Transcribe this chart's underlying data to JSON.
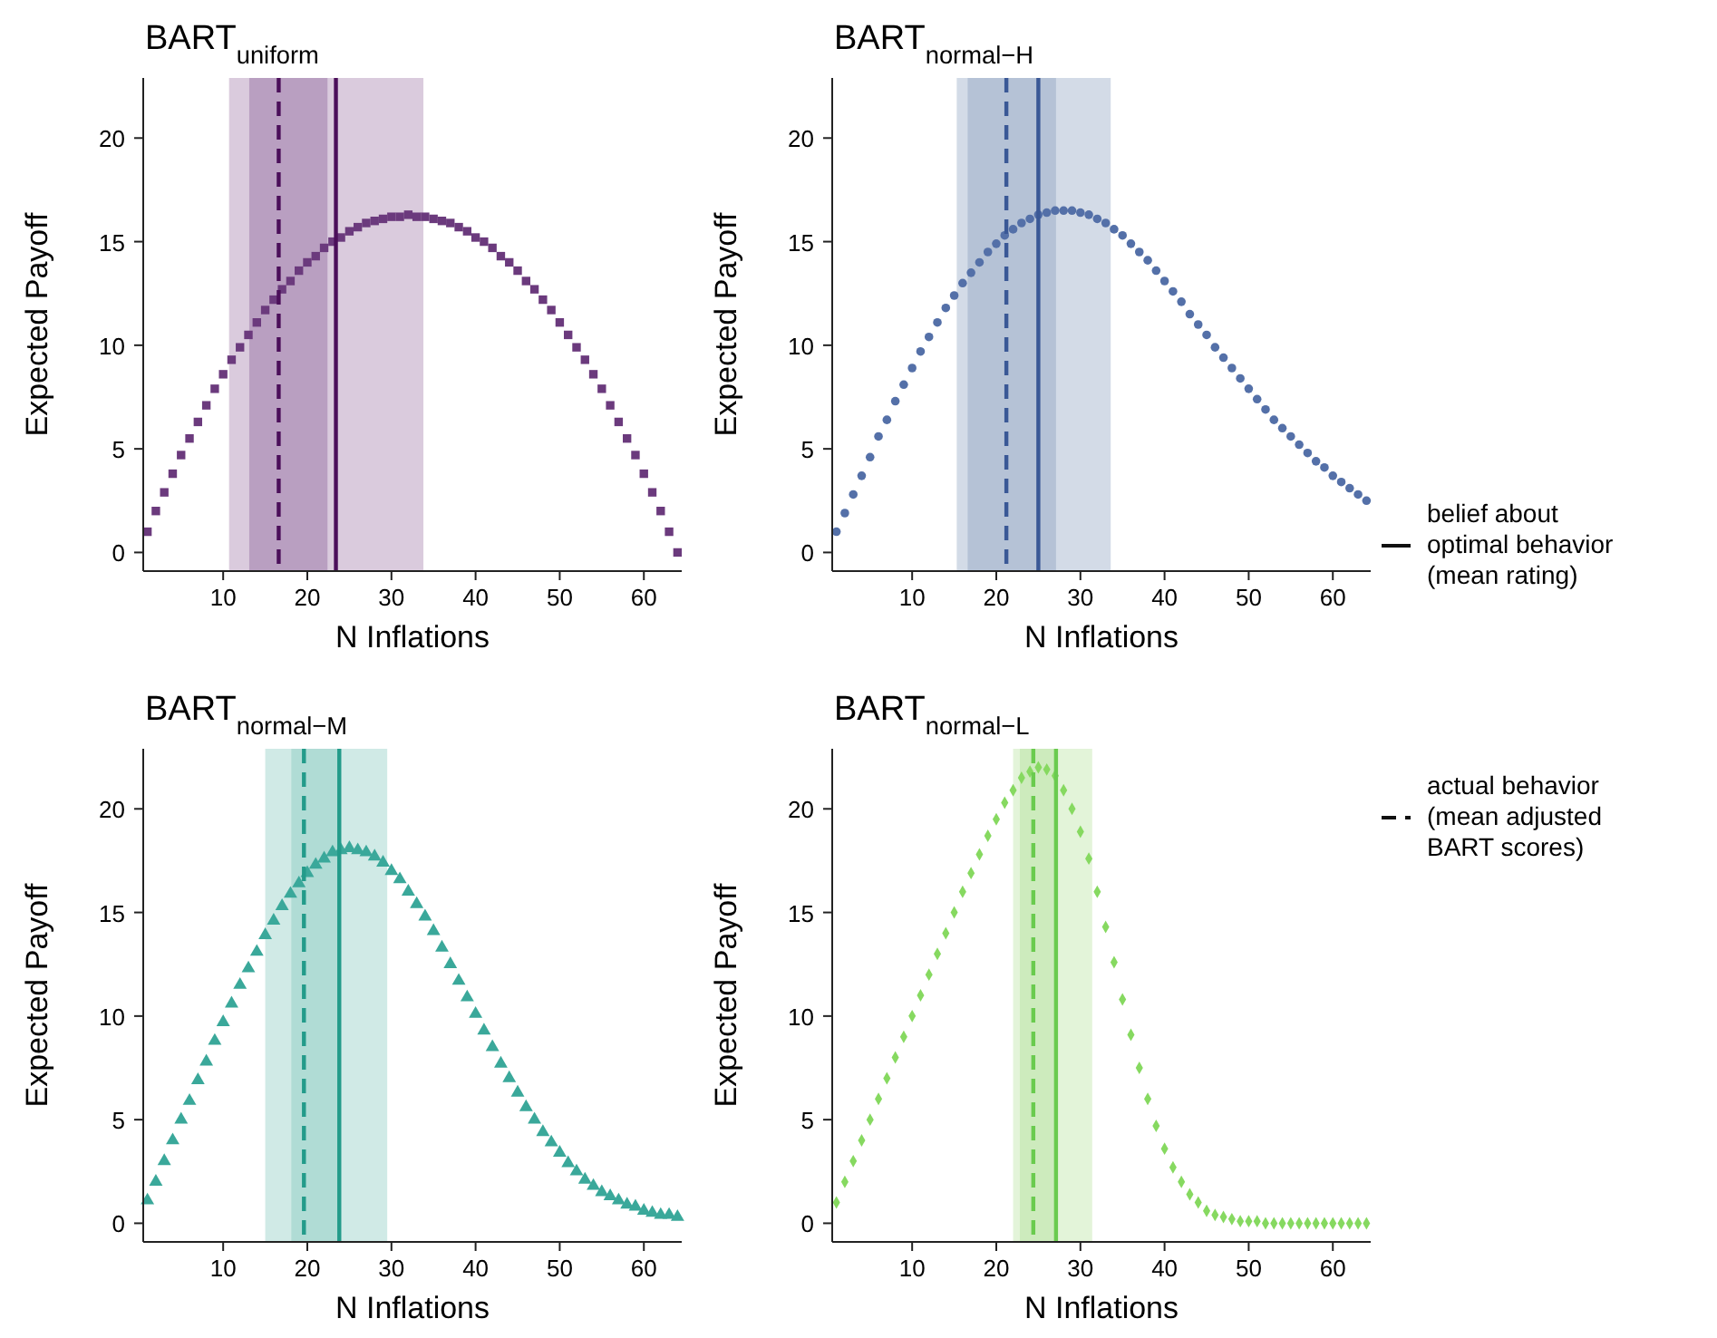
{
  "chart_data": [
    {
      "type": "scatter",
      "title": "BART$_{uniform}$",
      "xlabel": "N Inflations",
      "ylabel": "Expected Payoff",
      "marker": "square",
      "grid": false,
      "xlim": [
        0.5,
        64.5
      ],
      "ylim": [
        -0.9,
        22.9
      ],
      "xticks": [
        10,
        20,
        30,
        40,
        50,
        60
      ],
      "yticks": [
        0,
        5,
        10,
        15,
        20
      ],
      "x": [
        1,
        2,
        3,
        4,
        5,
        6,
        7,
        8,
        9,
        10,
        11,
        12,
        13,
        14,
        15,
        16,
        17,
        18,
        19,
        20,
        21,
        22,
        23,
        24,
        25,
        26,
        27,
        28,
        29,
        30,
        31,
        32,
        33,
        34,
        35,
        36,
        37,
        38,
        39,
        40,
        41,
        42,
        43,
        44,
        45,
        46,
        47,
        48,
        49,
        50,
        51,
        52,
        53,
        54,
        55,
        56,
        57,
        58,
        59,
        60,
        61,
        62,
        63,
        64
      ],
      "series": [
        {
          "color": "#6b3a7d",
          "values": [
            1.0,
            2.0,
            2.9,
            3.8,
            4.7,
            5.5,
            6.3,
            7.1,
            7.9,
            8.6,
            9.3,
            9.9,
            10.5,
            11.1,
            11.7,
            12.2,
            12.7,
            13.1,
            13.6,
            14.0,
            14.3,
            14.7,
            15.0,
            15.2,
            15.5,
            15.7,
            15.9,
            16.0,
            16.1,
            16.2,
            16.2,
            16.3,
            16.2,
            16.2,
            16.1,
            16.0,
            15.9,
            15.7,
            15.5,
            15.2,
            15.0,
            14.7,
            14.3,
            14.0,
            13.6,
            13.1,
            12.7,
            12.2,
            11.7,
            11.1,
            10.5,
            9.9,
            9.3,
            8.6,
            7.9,
            7.1,
            6.3,
            5.5,
            4.7,
            3.8,
            2.9,
            2.0,
            1.0,
            0
          ]
        }
      ],
      "bands": [
        {
          "axis": "x",
          "from": 10.7,
          "to": 33.8,
          "color": "#dacbdd"
        },
        {
          "axis": "x",
          "from": 13.1,
          "to": 22.4,
          "color": "#b99fc1"
        }
      ],
      "ref_lines": [
        {
          "axis": "x",
          "value": 16.6,
          "color": "#4b0f5a",
          "line_style": "dashed"
        },
        {
          "axis": "x",
          "value": 23.4,
          "color": "#4b0f5a",
          "line_style": "solid"
        }
      ]
    },
    {
      "type": "scatter",
      "title": "BART$_{normal−H}$",
      "xlabel": "N Inflations",
      "ylabel": "Expected Payoff",
      "marker": "circle",
      "grid": false,
      "xlim": [
        0.5,
        64.5
      ],
      "ylim": [
        -0.9,
        22.9
      ],
      "xticks": [
        10,
        20,
        30,
        40,
        50,
        60
      ],
      "yticks": [
        0,
        5,
        10,
        15,
        20
      ],
      "x": [
        1,
        2,
        3,
        4,
        5,
        6,
        7,
        8,
        9,
        10,
        11,
        12,
        13,
        14,
        15,
        16,
        17,
        18,
        19,
        20,
        21,
        22,
        23,
        24,
        25,
        26,
        27,
        28,
        29,
        30,
        31,
        32,
        33,
        34,
        35,
        36,
        37,
        38,
        39,
        40,
        41,
        42,
        43,
        44,
        45,
        46,
        47,
        48,
        49,
        50,
        51,
        52,
        53,
        54,
        55,
        56,
        57,
        58,
        59,
        60,
        61,
        62,
        63,
        64
      ],
      "series": [
        {
          "color": "#5470a8",
          "values": [
            1.0,
            1.9,
            2.8,
            3.7,
            4.6,
            5.6,
            6.4,
            7.3,
            8.1,
            8.9,
            9.7,
            10.4,
            11.1,
            11.8,
            12.4,
            13.0,
            13.5,
            14.0,
            14.5,
            14.9,
            15.3,
            15.6,
            15.9,
            16.1,
            16.3,
            16.4,
            16.5,
            16.5,
            16.5,
            16.4,
            16.3,
            16.1,
            15.9,
            15.6,
            15.3,
            14.9,
            14.5,
            14.1,
            13.6,
            13.1,
            12.6,
            12.1,
            11.5,
            11.0,
            10.5,
            9.9,
            9.4,
            8.9,
            8.4,
            7.9,
            7.4,
            6.9,
            6.4,
            6.0,
            5.6,
            5.2,
            4.8,
            4.4,
            4.1,
            3.7,
            3.4,
            3.1,
            2.8,
            2.5
          ]
        }
      ],
      "bands": [
        {
          "axis": "x",
          "from": 15.3,
          "to": 33.6,
          "color": "#d3dbe7"
        },
        {
          "axis": "x",
          "from": 16.6,
          "to": 27.1,
          "color": "#b5c2d6"
        }
      ],
      "ref_lines": [
        {
          "axis": "x",
          "value": 21.2,
          "color": "#3a5896",
          "line_style": "dashed"
        },
        {
          "axis": "x",
          "value": 25.0,
          "color": "#3a5896",
          "line_style": "solid"
        }
      ],
      "annotations": [
        "belief about optimal behavior (mean rating)",
        "actual behavior (mean adjusted BART scores)"
      ]
    },
    {
      "type": "scatter",
      "title": "BART$_{normal−M}$",
      "xlabel": "N Inflations",
      "ylabel": "Expected Payoff",
      "marker": "triangle",
      "grid": false,
      "xlim": [
        0.5,
        64.5
      ],
      "ylim": [
        -0.9,
        22.9
      ],
      "xticks": [
        10,
        20,
        30,
        40,
        50,
        60
      ],
      "yticks": [
        0,
        5,
        10,
        15,
        20
      ],
      "x": [
        1,
        2,
        3,
        4,
        5,
        6,
        7,
        8,
        9,
        10,
        11,
        12,
        13,
        14,
        15,
        16,
        17,
        18,
        19,
        20,
        21,
        22,
        23,
        24,
        25,
        26,
        27,
        28,
        29,
        30,
        31,
        32,
        33,
        34,
        35,
        36,
        37,
        38,
        39,
        40,
        41,
        42,
        43,
        44,
        45,
        46,
        47,
        48,
        49,
        50,
        51,
        52,
        53,
        54,
        55,
        56,
        57,
        58,
        59,
        60,
        61,
        62,
        63,
        64
      ],
      "series": [
        {
          "color": "#3aa89a",
          "values": [
            1.1,
            2.0,
            3.0,
            4.0,
            5.0,
            5.9,
            6.9,
            7.8,
            8.8,
            9.7,
            10.6,
            11.5,
            12.3,
            13.1,
            13.9,
            14.6,
            15.3,
            15.9,
            16.4,
            16.9,
            17.3,
            17.6,
            17.9,
            18.0,
            18.1,
            18.0,
            17.9,
            17.7,
            17.4,
            17.0,
            16.6,
            16.0,
            15.4,
            14.8,
            14.1,
            13.3,
            12.5,
            11.7,
            10.9,
            10.1,
            9.3,
            8.5,
            7.7,
            7.0,
            6.3,
            5.6,
            5.0,
            4.4,
            3.9,
            3.4,
            2.9,
            2.5,
            2.1,
            1.8,
            1.5,
            1.3,
            1.1,
            0.9,
            0.8,
            0.6,
            0.5,
            0.4,
            0.4,
            0.3
          ]
        }
      ],
      "bands": [
        {
          "axis": "x",
          "from": 15.0,
          "to": 29.5,
          "color": "#d0eae6"
        },
        {
          "axis": "x",
          "from": 18.1,
          "to": 24.0,
          "color": "#b0dcd5"
        }
      ],
      "ref_lines": [
        {
          "axis": "x",
          "value": 19.6,
          "color": "#239b8a",
          "line_style": "dashed"
        },
        {
          "axis": "x",
          "value": 23.8,
          "color": "#239b8a",
          "line_style": "solid"
        }
      ]
    },
    {
      "type": "scatter",
      "title": "BART$_{normal−L}$",
      "xlabel": "N Inflations",
      "ylabel": "Expected Payoff",
      "marker": "diamond",
      "grid": false,
      "xlim": [
        0.5,
        64.5
      ],
      "ylim": [
        -0.9,
        22.9
      ],
      "xticks": [
        10,
        20,
        30,
        40,
        50,
        60
      ],
      "yticks": [
        0,
        5,
        10,
        15,
        20
      ],
      "x": [
        1,
        2,
        3,
        4,
        5,
        6,
        7,
        8,
        9,
        10,
        11,
        12,
        13,
        14,
        15,
        16,
        17,
        18,
        19,
        20,
        21,
        22,
        23,
        24,
        25,
        26,
        27,
        28,
        29,
        30,
        31,
        32,
        33,
        34,
        35,
        36,
        37,
        38,
        39,
        40,
        41,
        42,
        43,
        44,
        45,
        46,
        47,
        48,
        49,
        50,
        51,
        52,
        53,
        54,
        55,
        56,
        57,
        58,
        59,
        60,
        61,
        62,
        63,
        64
      ],
      "series": [
        {
          "color": "#86d960",
          "values": [
            1,
            2,
            3,
            4,
            5,
            6,
            7,
            8,
            9,
            10,
            11,
            12,
            13,
            14,
            15,
            16,
            16.9,
            17.8,
            18.7,
            19.5,
            20.3,
            20.9,
            21.5,
            21.8,
            22.0,
            21.9,
            21.6,
            20.9,
            20.0,
            18.9,
            17.6,
            16.0,
            14.3,
            12.6,
            10.8,
            9.1,
            7.5,
            6.0,
            4.7,
            3.6,
            2.7,
            2.0,
            1.4,
            1.0,
            0.6,
            0.4,
            0.3,
            0.2,
            0.1,
            0.1,
            0.1,
            0,
            0,
            0,
            0,
            0,
            0,
            0,
            0,
            0,
            0,
            0,
            0,
            0
          ]
        }
      ],
      "bands": [
        {
          "axis": "x",
          "from": 22.0,
          "to": 31.4,
          "color": "#e3f4d9"
        },
        {
          "axis": "x",
          "from": 22.8,
          "to": 27.2,
          "color": "#cdebbd"
        }
      ],
      "ref_lines": [
        {
          "axis": "x",
          "value": 24.4,
          "color": "#6acb4f",
          "line_style": "dashed"
        },
        {
          "axis": "x",
          "value": 27.1,
          "color": "#6acb4f",
          "line_style": "solid"
        }
      ]
    }
  ]
}
